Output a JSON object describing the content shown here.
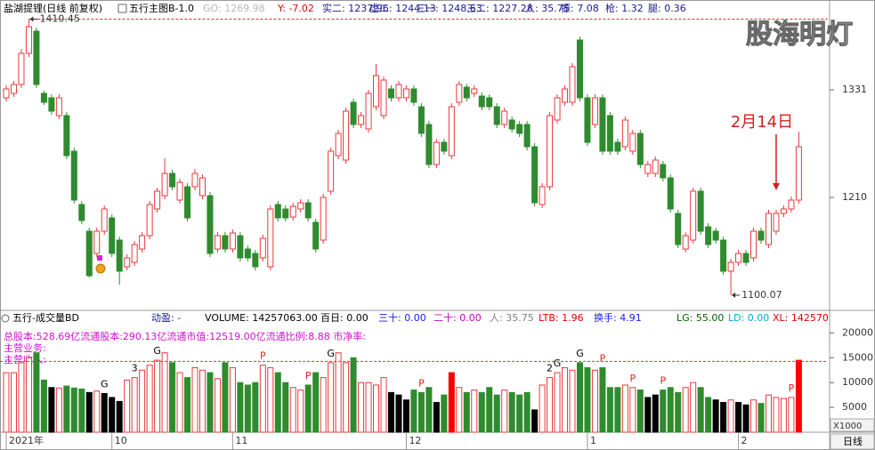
{
  "chart_data": [
    {
      "type": "candlestick",
      "title": "盐湖提锂(日线 前复权)",
      "indicator": "五行主图B-1.0",
      "header_items": [
        {
          "text": "GO: 1269.98",
          "color": "#b8b8b8"
        },
        {
          "text": "Y: -7.02",
          "color": "#e00000"
        },
        {
          "text": "实二: 1237.96",
          "color": "#1a1a90"
        },
        {
          "text": "虚二: 1244.13",
          "color": "#1a1a90"
        },
        {
          "text": "三一: 1248.63",
          "color": "#1a1a90"
        },
        {
          "text": "三二: 1227.28",
          "color": "#1a1a90"
        },
        {
          "text": "人: 35.75",
          "color": "#1a1a90"
        },
        {
          "text": "振: 7.08",
          "color": "#1a1a90"
        },
        {
          "text": "枪: 1.32",
          "color": "#1a1a90"
        },
        {
          "text": "腿: 0.36",
          "color": "#1a1a90"
        }
      ],
      "categories": [
        "2021年",
        null,
        null,
        null,
        null,
        null,
        null,
        null,
        null,
        null,
        null,
        null,
        null,
        null,
        "10",
        null,
        null,
        null,
        null,
        null,
        null,
        null,
        null,
        null,
        null,
        null,
        null,
        null,
        null,
        null,
        "11",
        null,
        null,
        null,
        null,
        null,
        null,
        null,
        null,
        null,
        null,
        null,
        null,
        null,
        null,
        null,
        null,
        null,
        null,
        null,
        null,
        null,
        null,
        "12",
        null,
        null,
        null,
        null,
        null,
        null,
        null,
        null,
        null,
        null,
        null,
        null,
        null,
        null,
        null,
        null,
        null,
        null,
        null,
        null,
        null,
        null,
        null,
        "1",
        null,
        null,
        null,
        null,
        null,
        null,
        null,
        null,
        null,
        null,
        null,
        null,
        null,
        null,
        null,
        null,
        null,
        null,
        null,
        "2",
        null,
        null,
        null,
        null,
        null,
        null,
        null,
        null
      ],
      "open": [
        1322,
        1327,
        1337,
        1372,
        1397,
        1327,
        1322,
        1302,
        1302,
        1262,
        1202,
        1172,
        1147,
        1172,
        1187,
        1162,
        1132,
        1137,
        1152,
        1167,
        1197,
        1212,
        1237,
        1207,
        1222,
        1222,
        1212,
        1212,
        1152,
        1167,
        1152,
        1167,
        1152,
        1147,
        1142,
        1132,
        1202,
        1197,
        1188,
        1197,
        1204,
        1182,
        1162,
        1217,
        1257,
        1252,
        1317,
        1292,
        1287,
        1312,
        1302,
        1332,
        1322,
        1322,
        1332,
        1312,
        1292,
        1247,
        1272,
        1257,
        1317,
        1334,
        1327,
        1324,
        1322,
        1312,
        1292,
        1297,
        1292,
        1292,
        1267,
        1202,
        1222,
        1297,
        1317,
        1317,
        1387,
        1322,
        1292,
        1322,
        1302,
        1272,
        1267,
        1262,
        1282,
        1237,
        1237,
        1247,
        1232,
        1192,
        1152,
        1162,
        1217,
        1177,
        1172,
        1162,
        1127,
        1137,
        1147,
        1142,
        1172,
        1157,
        1172,
        1192,
        1197,
        1207
      ],
      "high": [
        1336,
        1341,
        1377,
        1410.45,
        1401,
        1330,
        1326,
        1326,
        1306,
        1266,
        1206,
        1176,
        1176,
        1201,
        1191,
        1166,
        1146,
        1161,
        1171,
        1206,
        1221,
        1254,
        1241,
        1231,
        1226,
        1242,
        1236,
        1216,
        1171,
        1171,
        1174,
        1171,
        1156,
        1151,
        1168,
        1201,
        1206,
        1201,
        1204,
        1208,
        1208,
        1186,
        1214,
        1266,
        1286,
        1311,
        1321,
        1306,
        1331,
        1360,
        1346,
        1336,
        1341,
        1336,
        1336,
        1316,
        1296,
        1276,
        1276,
        1316,
        1341,
        1338,
        1336,
        1328,
        1326,
        1316,
        1311,
        1301,
        1296,
        1296,
        1271,
        1226,
        1306,
        1326,
        1336,
        1361,
        1391,
        1326,
        1326,
        1326,
        1306,
        1276,
        1301,
        1286,
        1286,
        1251,
        1256,
        1251,
        1236,
        1196,
        1171,
        1221,
        1221,
        1181,
        1176,
        1166,
        1141,
        1151,
        1151,
        1176,
        1176,
        1196,
        1196,
        1201,
        1211,
        1284
      ],
      "low": [
        1318,
        1323,
        1333,
        1368,
        1333,
        1314,
        1303,
        1298,
        1253,
        1203,
        1180,
        1120,
        1143,
        1168,
        1143,
        1112,
        1128,
        1133,
        1148,
        1163,
        1193,
        1208,
        1218,
        1203,
        1183,
        1218,
        1208,
        1143,
        1148,
        1148,
        1148,
        1138,
        1138,
        1128,
        1138,
        1128,
        1183,
        1183,
        1184,
        1193,
        1183,
        1148,
        1158,
        1213,
        1253,
        1248,
        1288,
        1288,
        1283,
        1308,
        1298,
        1318,
        1318,
        1318,
        1313,
        1278,
        1243,
        1243,
        1258,
        1253,
        1313,
        1318,
        1323,
        1308,
        1308,
        1288,
        1288,
        1283,
        1278,
        1263,
        1200,
        1198,
        1218,
        1293,
        1313,
        1313,
        1318,
        1268,
        1288,
        1258,
        1258,
        1258,
        1263,
        1258,
        1243,
        1233,
        1233,
        1228,
        1193,
        1153,
        1148,
        1158,
        1168,
        1153,
        1158,
        1123,
        1100.07,
        1133,
        1133,
        1138,
        1158,
        1153,
        1168,
        1188,
        1193,
        1203
      ],
      "close": [
        1332,
        1337,
        1372,
        1402,
        1337,
        1317,
        1307,
        1322,
        1257,
        1207,
        1184,
        1122,
        1172,
        1197,
        1147,
        1127,
        1142,
        1157,
        1167,
        1202,
        1217,
        1237,
        1222,
        1227,
        1187,
        1237,
        1232,
        1147,
        1167,
        1152,
        1170,
        1142,
        1142,
        1132,
        1164,
        1197,
        1187,
        1187,
        1200,
        1204,
        1187,
        1152,
        1210,
        1262,
        1282,
        1307,
        1292,
        1302,
        1327,
        1347,
        1342,
        1322,
        1337,
        1332,
        1317,
        1282,
        1247,
        1272,
        1262,
        1312,
        1337,
        1322,
        1332,
        1312,
        1312,
        1292,
        1307,
        1287,
        1282,
        1267,
        1204,
        1222,
        1302,
        1322,
        1332,
        1357,
        1322,
        1272,
        1322,
        1262,
        1262,
        1262,
        1297,
        1282,
        1247,
        1247,
        1252,
        1232,
        1197,
        1157,
        1167,
        1217,
        1172,
        1157,
        1162,
        1127,
        1137,
        1147,
        1137,
        1172,
        1162,
        1192,
        1192,
        1197,
        1207,
        1267
      ],
      "up_color": "#e8383d",
      "down_color": "#2e8b2e",
      "ylim": [
        1084,
        1414
      ],
      "yticks": [
        1210,
        1331
      ],
      "annotations": [
        {
          "value": 1410.45,
          "index": 3
        },
        {
          "value": 1100.07,
          "index": 96
        },
        {
          "text": "2月14日",
          "index": 102,
          "color": "#d42020"
        }
      ]
    },
    {
      "type": "bar",
      "title": "五行-成交量BD",
      "header_items": [
        {
          "text": "动盈: -",
          "color": "#1a1aa0"
        },
        {
          "text": "VOLUME: 14257063.00",
          "color": "#000000"
        },
        {
          "text": "百日: 0.00",
          "color": "#000000"
        },
        {
          "text": "三十: 0.00",
          "color": "#1a1aff"
        },
        {
          "text": "二十: 0.00",
          "color": "#c000c0"
        },
        {
          "text": "人: 35.75",
          "color": "#808080"
        },
        {
          "text": "LTB: 1.96",
          "color": "#e00000"
        },
        {
          "text": "换手: 4.91",
          "color": "#1a1aff"
        },
        {
          "text": "LG: 55.00",
          "color": "#006400"
        },
        {
          "text": "LD: 0.00",
          "color": "#00b0d0"
        },
        {
          "text": "XL: 142570",
          "color": "#e00000"
        }
      ],
      "info_lines": [
        "总股本:528.69亿流通股本:290.13亿流通市值:12519.00亿流通比例:8.88   市净率:",
        "主营业务:",
        "主营收入:"
      ],
      "values": [
        12000,
        12000,
        14000,
        15000,
        16000,
        10500,
        9000,
        8900,
        9300,
        8900,
        8700,
        8000,
        8300,
        7800,
        7000,
        6200,
        10500,
        11000,
        12500,
        13500,
        14500,
        16000,
        14000,
        12000,
        11000,
        13000,
        12500,
        12000,
        10800,
        14000,
        13000,
        10000,
        9500,
        10000,
        13500,
        13000,
        12000,
        10000,
        9000,
        8500,
        9500,
        12000,
        11000,
        14000,
        16000,
        14000,
        15000,
        10000,
        10000,
        9500,
        11000,
        8000,
        7500,
        6500,
        8500,
        8000,
        9000,
        6000,
        7500,
        12000,
        9000,
        8000,
        8500,
        8000,
        9000,
        7500,
        8500,
        8000,
        7500,
        8000,
        4500,
        9500,
        11000,
        12000,
        13000,
        12500,
        14000,
        13000,
        12500,
        13000,
        9000,
        9000,
        9500,
        9000,
        8500,
        7000,
        7500,
        8500,
        9000,
        8000,
        9000,
        10000,
        9000,
        7000,
        6500,
        6000,
        6500,
        6000,
        5500,
        6500,
        5800,
        7500,
        7000,
        6800,
        7000,
        14500
      ],
      "colors": [
        "#e8383d",
        "#e8383d",
        "#e8383d",
        "#e8383d",
        "#2e8b2e",
        "#2e8b2e",
        "#000000",
        "#e8383d",
        "#2e8b2e",
        "#2e8b2e",
        "#2e8b2e",
        "#000000",
        "#e8383d",
        "#000000",
        "#000000",
        "#000000",
        "#e8383d",
        "#e8383d",
        "#e8383d",
        "#e8383d",
        "#e8383d",
        "#e8383d",
        "#2e8b2e",
        "#e8383d",
        "#2e8b2e",
        "#e8383d",
        "#e8383d",
        "#2e8b2e",
        "#e8383d",
        "#2e8b2e",
        "#e8383d",
        "#2e8b2e",
        "#2e8b2e",
        "#2e8b2e",
        "#e8383d",
        "#e8383d",
        "#2e8b2e",
        "#2e8b2e",
        "#e8383d",
        "#e8383d",
        "#2e8b2e",
        "#2e8b2e",
        "#e8383d",
        "#e8383d",
        "#e8383d",
        "#e8383d",
        "#2e8b2e",
        "#e8383d",
        "#e8383d",
        "#e8383d",
        "#e8383d",
        "#000000",
        "#000000",
        "#000000",
        "#2e8b2e",
        "#2e8b2e",
        "#2e8b2e",
        "#000000",
        "#2e8b2e",
        "#ff0000",
        "#e8383d",
        "#2e8b2e",
        "#e8383d",
        "#2e8b2e",
        "#2e8b2e",
        "#2e8b2e",
        "#e8383d",
        "#2e8b2e",
        "#2e8b2e",
        "#2e8b2e",
        "#000000",
        "#e8383d",
        "#e8383d",
        "#e8383d",
        "#e8383d",
        "#e8383d",
        "#2e8b2e",
        "#2e8b2e",
        "#e8383d",
        "#2e8b2e",
        "#2e8b2e",
        "#2e8b2e",
        "#e8383d",
        "#e8383d",
        "#2e8b2e",
        "#000000",
        "#000000",
        "#2e8b2e",
        "#2e8b2e",
        "#2e8b2e",
        "#e8383d",
        "#e8383d",
        "#2e8b2e",
        "#2e8b2e",
        "#000000",
        "#000000",
        "#e8383d",
        "#000000",
        "#000000",
        "#e8383d",
        "#2e8b2e",
        "#e8383d",
        "#e8383d",
        "#e8383d",
        "#e8383d",
        "#ff0000"
      ],
      "hollow_color": "#e8383d",
      "ylim": [
        0,
        21500
      ],
      "yticks": [
        5000,
        10000,
        15000,
        20000
      ],
      "unit_label": "X1000",
      "ref_line": 14257,
      "annotations": [
        {
          "text": "G",
          "index": 13
        },
        {
          "text": "G",
          "index": 20
        },
        {
          "text": "G",
          "index": 43
        },
        {
          "text": "G",
          "index": 73
        },
        {
          "text": "G",
          "index": 76
        },
        {
          "text": "P",
          "index": 34
        },
        {
          "text": "P",
          "index": 40
        },
        {
          "text": "P",
          "index": 55
        },
        {
          "text": "P",
          "index": 79
        },
        {
          "text": "P",
          "index": 83
        },
        {
          "text": "P",
          "index": 87
        },
        {
          "text": "P",
          "index": 104
        },
        {
          "text": "3",
          "index": 17
        },
        {
          "text": "2",
          "index": 72
        }
      ]
    }
  ],
  "watermark": "股海明灯",
  "period_label": "日线"
}
